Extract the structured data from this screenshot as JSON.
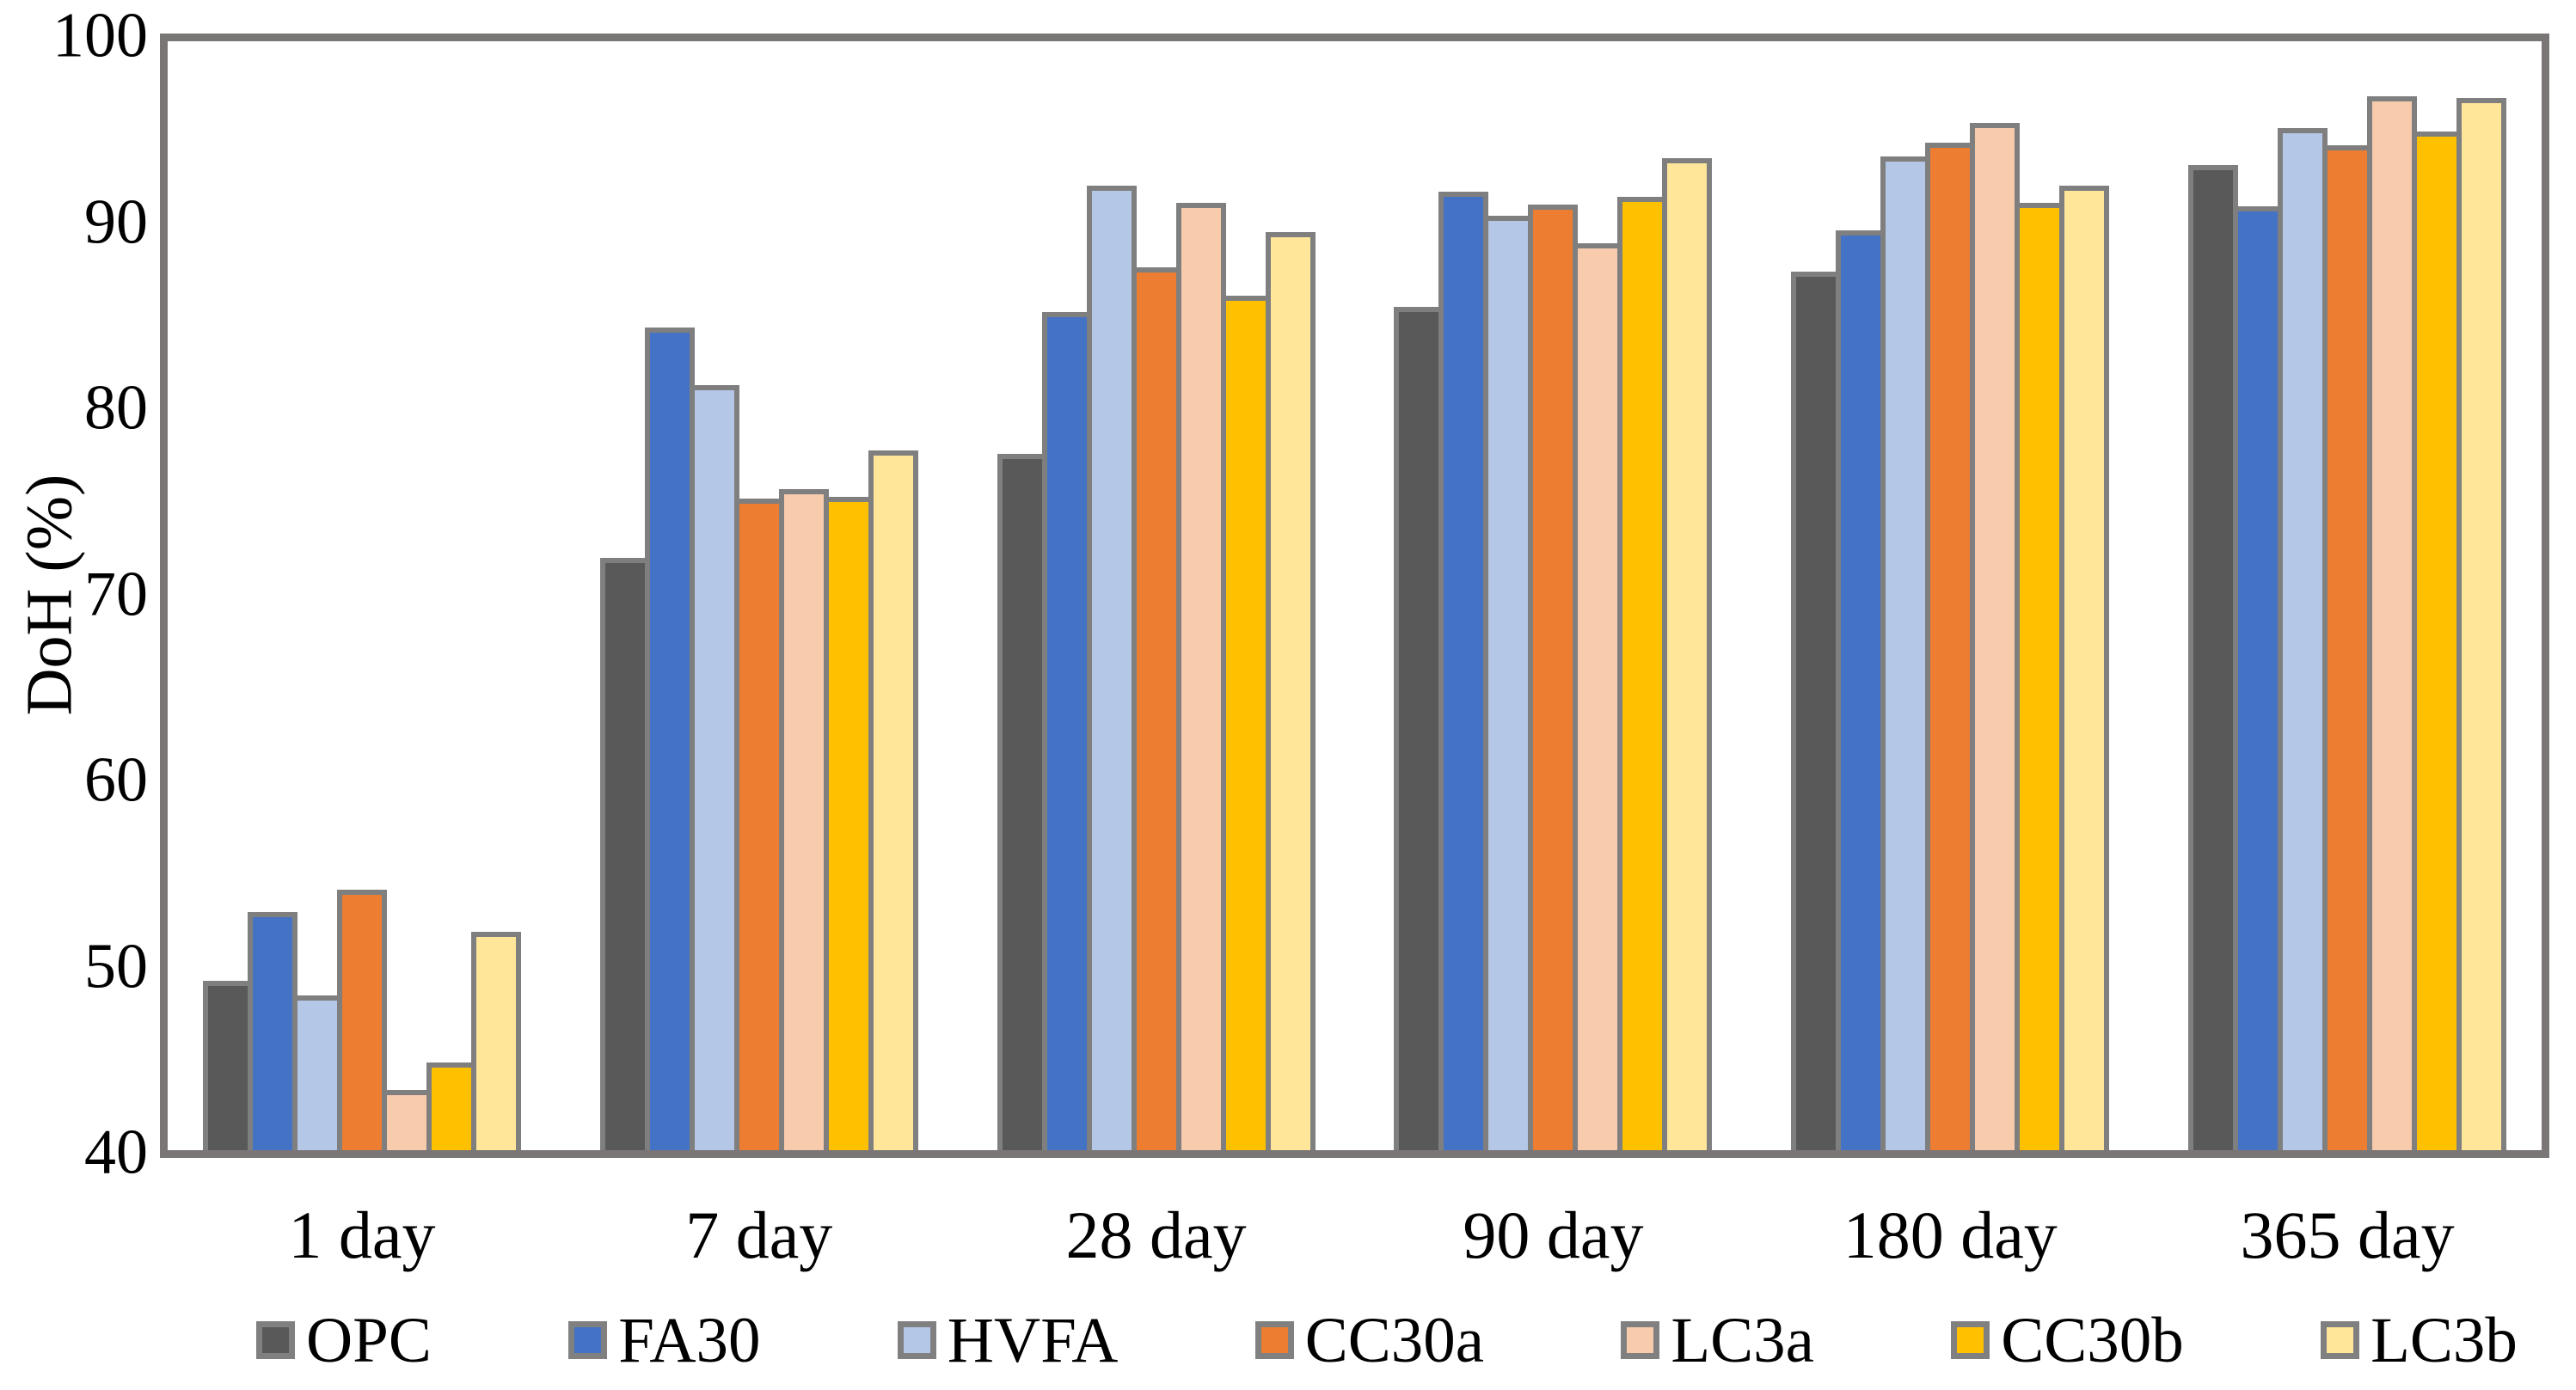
{
  "chart_data": {
    "type": "bar",
    "title": "",
    "ylabel": "DoH (%)",
    "xlabel": "",
    "ylim": [
      40,
      100
    ],
    "ytick_interval": 10,
    "yticks": [
      40,
      50,
      60,
      70,
      80,
      90,
      100
    ],
    "grid": false,
    "plot_border": true,
    "legend_position": "bottom",
    "categories": [
      "1 day",
      "7 day",
      "28 day",
      "90 day",
      "180 day",
      "365 day"
    ],
    "series": [
      {
        "name": "OPC",
        "color": "#595959",
        "values": [
          49.3,
          72.0,
          77.6,
          85.5,
          87.4,
          93.1
        ]
      },
      {
        "name": "FA30",
        "color": "#4472C4",
        "values": [
          53.0,
          84.4,
          85.2,
          91.7,
          89.6,
          90.9
        ]
      },
      {
        "name": "HVFA",
        "color": "#B4C7E7",
        "values": [
          48.5,
          81.3,
          92.0,
          90.4,
          93.6,
          95.1
        ]
      },
      {
        "name": "CC30a",
        "color": "#ED7D31",
        "values": [
          54.2,
          75.2,
          87.6,
          91.0,
          94.3,
          94.2
        ]
      },
      {
        "name": "LC3a",
        "color": "#F8CBAD",
        "values": [
          43.4,
          75.7,
          91.1,
          88.9,
          95.4,
          96.8
        ]
      },
      {
        "name": "CC30b",
        "color": "#FFC000",
        "values": [
          44.9,
          75.3,
          86.1,
          91.4,
          91.1,
          94.9
        ]
      },
      {
        "name": "LC3b",
        "color": "#FFE699",
        "values": [
          51.9,
          77.8,
          89.5,
          93.5,
          92.0,
          96.7
        ]
      }
    ],
    "style_colors": {
      "axis": "#7B7676",
      "bar_border": "#7F7F7F",
      "legend_swatch_border": "#808080",
      "text": "#000000",
      "background": "#FFFFFF"
    }
  }
}
